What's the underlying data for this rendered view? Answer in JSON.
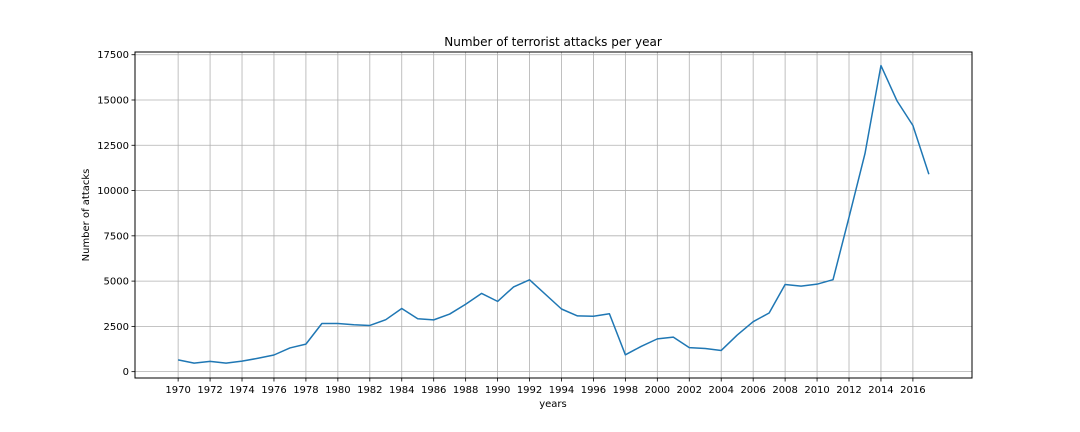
{
  "chart_data": {
    "type": "line",
    "title": "Number of terrorist attacks per year",
    "xlabel": "years",
    "ylabel": "Number of attacks",
    "xlim": [
      1967.3,
      2019.7
    ],
    "ylim": [
      -350,
      17650
    ],
    "grid": true,
    "x_ticks": [
      1970,
      1972,
      1974,
      1976,
      1978,
      1980,
      1982,
      1984,
      1986,
      1988,
      1990,
      1992,
      1994,
      1996,
      1998,
      2000,
      2002,
      2004,
      2006,
      2008,
      2010,
      2012,
      2014,
      2016
    ],
    "y_ticks": [
      0,
      2500,
      5000,
      7500,
      10000,
      12500,
      15000,
      17500
    ],
    "series": [
      {
        "color": "#1f77b4",
        "x": [
          1970,
          1971,
          1972,
          1973,
          1974,
          1975,
          1976,
          1977,
          1978,
          1979,
          1980,
          1981,
          1982,
          1983,
          1984,
          1985,
          1986,
          1987,
          1988,
          1989,
          1990,
          1991,
          1992,
          1994,
          1995,
          1996,
          1997,
          1998,
          1999,
          2000,
          2001,
          2002,
          2003,
          2004,
          2005,
          2006,
          2007,
          2008,
          2009,
          2010,
          2011,
          2012,
          2013,
          2014,
          2015,
          2016,
          2017
        ],
        "y": [
          650,
          470,
          570,
          470,
          580,
          740,
          920,
          1310,
          1520,
          2660,
          2660,
          2590,
          2550,
          2870,
          3490,
          2920,
          2860,
          3180,
          3720,
          4320,
          3880,
          4680,
          5070,
          3460,
          3080,
          3060,
          3200,
          930,
          1400,
          1810,
          1910,
          1330,
          1280,
          1170,
          2020,
          2760,
          3240,
          4810,
          4720,
          4830,
          5080,
          8520,
          12040,
          16900,
          14960,
          13590,
          10900
        ]
      }
    ]
  }
}
